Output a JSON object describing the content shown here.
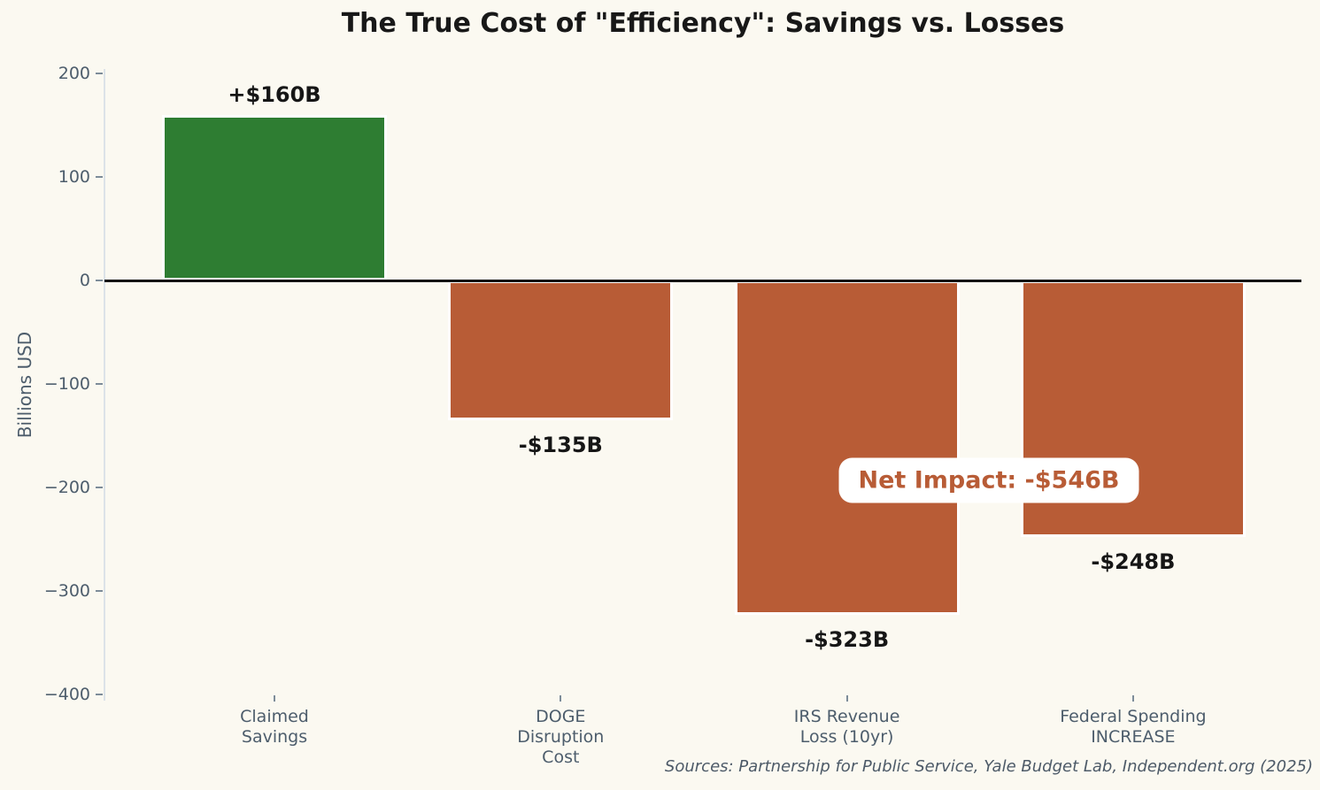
{
  "title": "The True Cost of \"Efficiency\": Savings vs. Losses",
  "y_axis_label": "Billions USD",
  "source_note": "Sources: Partnership for Public Service, Yale Budget Lab, Independent.org (2025)",
  "annotation": {
    "label": "Net Impact: -$546B"
  },
  "colors": {
    "background": "#fbf9f1",
    "title_text": "#181818",
    "positive_bar": "#2e7d32",
    "negative_bar": "#b85c36",
    "bar_edge": "#ffffff",
    "value_label_text": "#161616",
    "axis_text": "#4d5d6c",
    "spine": "#dce3e8",
    "tick_mark": "#7d8c99",
    "zero_line": "#141414",
    "annotation_text": "#b85c36",
    "annotation_bg": "#ffffff",
    "source_text": "#4d5a68"
  },
  "chart_data": {
    "type": "bar",
    "title": "The True Cost of \"Efficiency\": Savings vs. Losses",
    "xlabel": "",
    "ylabel": "Billions USD",
    "categories": [
      "Claimed\nSavings",
      "DOGE\nDisruption\nCost",
      "IRS Revenue\nLoss (10yr)",
      "Federal Spending\nINCREASE"
    ],
    "values": [
      160,
      -135,
      -323,
      -248
    ],
    "bar_labels": [
      "+$160B",
      "-$135B",
      "-$323B",
      "-$248B"
    ],
    "bar_colors": [
      "#2e7d32",
      "#b85c36",
      "#b85c36",
      "#b85c36"
    ],
    "ylim": [
      -400,
      200
    ],
    "yticks": [
      200,
      100,
      0,
      -100,
      -200,
      -300,
      -400
    ],
    "ytick_labels": [
      "200",
      "100",
      "0",
      "−100",
      "−200",
      "−300",
      "−400"
    ],
    "grid": false,
    "legend": "none",
    "annotation": "Net Impact: -$546B"
  }
}
